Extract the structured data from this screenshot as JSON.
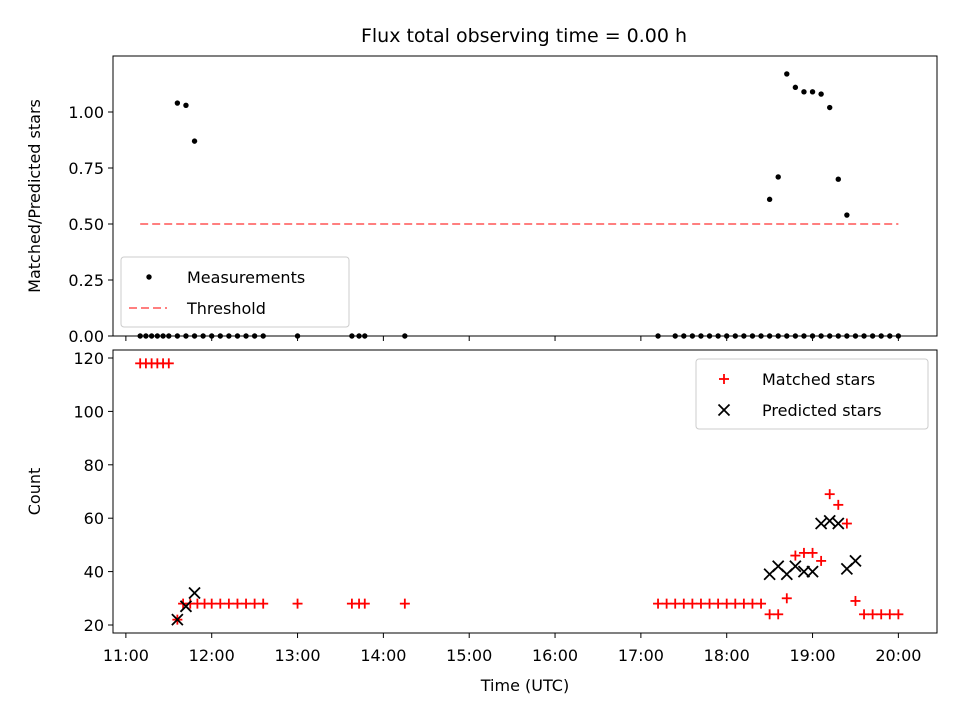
{
  "chart_data": [
    {
      "type": "scatter",
      "title": "Flux total observing time = 0.00 h",
      "ylabel": "Matched/Predicted stars",
      "xlabel": "",
      "xlim": [
        "10:51",
        "20:27"
      ],
      "ylim": [
        0,
        1.25
      ],
      "yticks": [
        0.0,
        0.25,
        0.5,
        0.75,
        1.0
      ],
      "ytick_labels": [
        "0.00",
        "0.25",
        "0.50",
        "0.75",
        "1.00"
      ],
      "grid": false,
      "legend_position": "lower-left",
      "series": [
        {
          "name": "Measurements",
          "marker": "dot",
          "color": "#000000",
          "x": [
            "11:10",
            "11:14",
            "11:18",
            "11:22",
            "11:26",
            "11:30",
            "11:36",
            "11:42",
            "11:48",
            "11:54",
            "12:00",
            "12:06",
            "12:12",
            "12:18",
            "12:24",
            "12:30",
            "12:36",
            "13:00",
            "13:38",
            "13:43",
            "13:47",
            "14:15",
            "17:12",
            "17:24",
            "17:30",
            "17:36",
            "17:42",
            "17:48",
            "17:54",
            "18:00",
            "18:06",
            "18:12",
            "18:18",
            "18:24",
            "18:30",
            "18:36",
            "18:42",
            "18:48",
            "18:54",
            "19:00",
            "19:06",
            "19:12",
            "19:18",
            "19:24",
            "19:30",
            "19:36",
            "19:42",
            "19:48",
            "19:54",
            "20:00",
            "11:36",
            "11:42",
            "11:48",
            "18:30",
            "18:36",
            "18:42",
            "18:48",
            "18:54",
            "19:00",
            "19:06",
            "19:12",
            "19:18",
            "19:24"
          ],
          "y": [
            0,
            0,
            0,
            0,
            0,
            0,
            0,
            0,
            0,
            0,
            0,
            0,
            0,
            0,
            0,
            0,
            0,
            0,
            0,
            0,
            0,
            0,
            0,
            0,
            0,
            0,
            0,
            0,
            0,
            0,
            0,
            0,
            0,
            0,
            0,
            0,
            0,
            0,
            0,
            0,
            0,
            0,
            0,
            0,
            0,
            0,
            0,
            0,
            0,
            0,
            1.04,
            1.03,
            0.87,
            0.61,
            0.71,
            1.17,
            1.11,
            1.09,
            1.09,
            1.08,
            1.02,
            0.7,
            0.54
          ]
        },
        {
          "name": "Threshold",
          "line_style": "dashed",
          "color": "#ff7f7f",
          "x": [
            "11:10",
            "20:00"
          ],
          "y": [
            0.5,
            0.5
          ]
        }
      ]
    },
    {
      "type": "scatter",
      "title": "",
      "xlabel": "Time (UTC)",
      "ylabel": "Count",
      "xlim": [
        "10:51",
        "20:27"
      ],
      "ylim": [
        17,
        123
      ],
      "xticks": [
        "11:00",
        "12:00",
        "13:00",
        "14:00",
        "15:00",
        "16:00",
        "17:00",
        "18:00",
        "19:00",
        "20:00"
      ],
      "yticks": [
        20,
        40,
        60,
        80,
        100,
        120
      ],
      "ytick_labels": [
        "20",
        "40",
        "60",
        "80",
        "100",
        "120"
      ],
      "grid": false,
      "legend_position": "top-right",
      "series": [
        {
          "name": "Matched stars",
          "marker": "plus",
          "color": "#ff0000",
          "x": [
            "11:10",
            "11:14",
            "11:18",
            "11:22",
            "11:26",
            "11:30",
            "11:36",
            "11:40",
            "11:45",
            "11:50",
            "11:55",
            "12:00",
            "12:06",
            "12:12",
            "12:18",
            "12:24",
            "12:30",
            "12:36",
            "13:00",
            "13:38",
            "13:43",
            "13:47",
            "14:15",
            "17:12",
            "17:18",
            "17:24",
            "17:30",
            "17:36",
            "17:42",
            "17:48",
            "17:54",
            "18:00",
            "18:06",
            "18:12",
            "18:18",
            "18:24",
            "18:30",
            "18:36",
            "18:42",
            "18:48",
            "18:54",
            "19:00",
            "19:06",
            "19:12",
            "19:18",
            "19:24",
            "19:30",
            "19:36",
            "19:42",
            "19:48",
            "19:54",
            "20:00"
          ],
          "y": [
            118,
            118,
            118,
            118,
            118,
            118,
            22,
            28,
            28,
            28,
            28,
            28,
            28,
            28,
            28,
            28,
            28,
            28,
            28,
            28,
            28,
            28,
            28,
            28,
            28,
            28,
            28,
            28,
            28,
            28,
            28,
            28,
            28,
            28,
            28,
            28,
            24,
            24,
            30,
            46,
            47,
            47,
            44,
            69,
            65,
            58,
            29,
            24,
            24,
            24,
            24,
            24
          ]
        },
        {
          "name": "Predicted stars",
          "marker": "x",
          "color": "#000000",
          "x": [
            "11:36",
            "11:42",
            "11:48",
            "18:30",
            "18:36",
            "18:42",
            "18:48",
            "18:54",
            "19:00",
            "19:06",
            "19:12",
            "19:18",
            "19:24",
            "19:30"
          ],
          "y": [
            22,
            27,
            32,
            39,
            42,
            39,
            42,
            40,
            40,
            58,
            59,
            58,
            41,
            44
          ]
        }
      ]
    }
  ]
}
